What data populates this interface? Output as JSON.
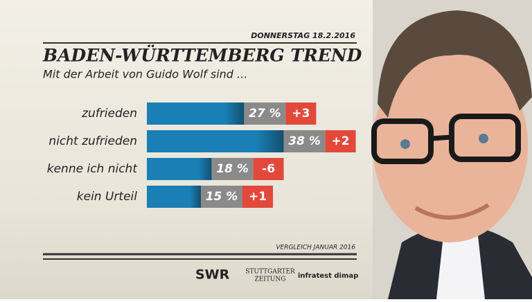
{
  "chart_data": {
    "type": "bar",
    "date": "DONNERSTAG  18.2.2016",
    "title": "BADEN-WÜRTTEMBERG TREND",
    "subtitle": "Mit der Arbeit von Guido Wolf sind ...",
    "categories": [
      "zufrieden",
      "nicht zufrieden",
      "kenne ich nicht",
      "kein Urteil"
    ],
    "series": [
      {
        "name": "Anteil",
        "color": "#1a7fb5",
        "values": [
          27,
          38,
          18,
          15
        ],
        "value_labels": [
          "27 %",
          "38 %",
          "18 %",
          "15 %"
        ]
      },
      {
        "name": "Veränderung",
        "color": "#e2493b",
        "values": [
          3,
          2,
          -6,
          1
        ],
        "value_labels": [
          "+3",
          "+2",
          "-6",
          "+1"
        ]
      }
    ],
    "note": "VERGLEICH JANUAR 2016",
    "sources": [
      "SWR",
      "STUTTGARTER",
      "ZEITUNG",
      "infratest dimap"
    ]
  }
}
